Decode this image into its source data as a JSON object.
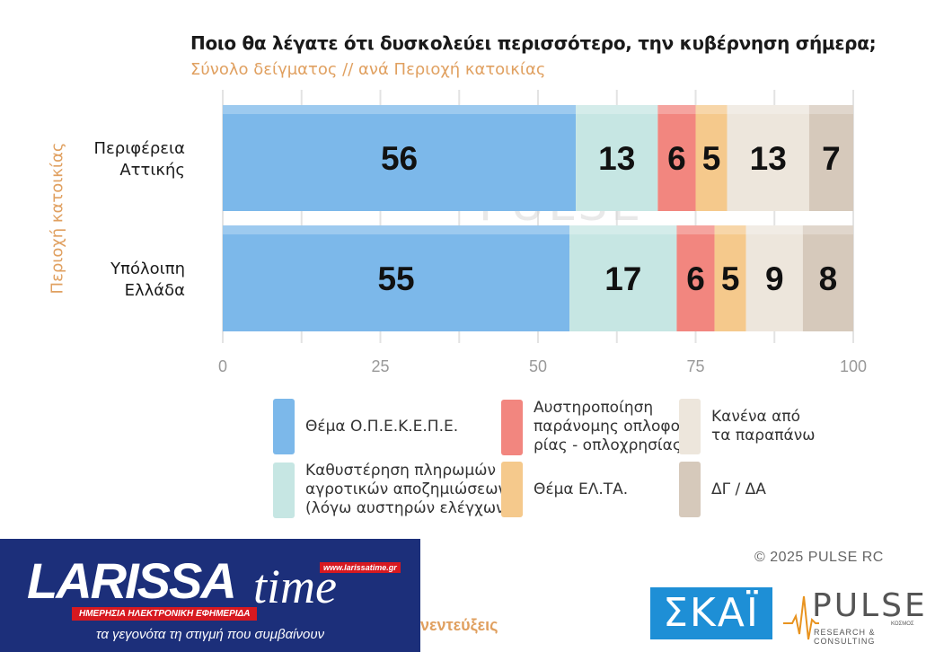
{
  "chart_data": {
    "type": "bar",
    "orientation": "horizontal",
    "stacked": true,
    "title": "Ποιο θα λέγατε ότι δυσκολεύει περισσότερο, την κυβέρνηση σήμερα;",
    "subtitle": "Σύνολο δείγματος // ανά Περιοχή κατοικίας",
    "ylabel": "Περιοχή κατοικίας",
    "xlim": [
      0,
      100
    ],
    "xticks": [
      "0",
      "25",
      "50",
      "75",
      "100"
    ],
    "categories": [
      {
        "line1": "Περιφέρεια",
        "line2": "Αττικής"
      },
      {
        "line1": "Υπόλοιπη",
        "line2": "Ελλάδα"
      }
    ],
    "series": [
      {
        "name": "Θέμα Ο.Π.Ε.Κ.Ε.Π.Ε.",
        "color": "#7cb8ea",
        "values": [
          56,
          55
        ]
      },
      {
        "name": "Καθυστέρηση πληρωμών αγροτικών αποζημιώσεων (λόγω αυστηρών ελέγχων)",
        "color": "#c6e6e3",
        "values": [
          13,
          17
        ]
      },
      {
        "name": "Αυστηροποίηση παράνομης οπλοφορίας - οπλοχρησίας",
        "color": "#f2867f",
        "values": [
          6,
          6
        ]
      },
      {
        "name": "Θέμα ΕΛ.ΤΑ.",
        "color": "#f5c98c",
        "values": [
          5,
          5
        ]
      },
      {
        "name": "Κανένα από τα παραπάνω",
        "color": "#ede6dc",
        "values": [
          13,
          9
        ]
      },
      {
        "name": "ΔΓ / ΔΑ",
        "color": "#d6c9bb",
        "values": [
          7,
          8
        ]
      }
    ],
    "grid": true
  },
  "legend": [
    {
      "lines": [
        "Θέμα Ο.Π.Ε.Κ.Ε.Π.Ε."
      ],
      "color": "#7cb8ea"
    },
    {
      "lines": [
        "Καθυστέρηση πληρωμών",
        "αγροτικών αποζημιώσεων",
        "(λόγω αυστηρών ελέγχων)"
      ],
      "color": "#c6e6e3"
    },
    {
      "lines": [
        "Αυστηροποίηση",
        "παράνομης οπλοφο-",
        "ρίας - οπλοχρησίας"
      ],
      "color": "#f2867f"
    },
    {
      "lines": [
        "Θέμα ΕΛ.ΤΑ."
      ],
      "color": "#f5c98c"
    },
    {
      "lines": [
        "Κανένα από",
        "τα παραπάνω"
      ],
      "color": "#ede6dc"
    },
    {
      "lines": [
        "ΔΓ / ΔΑ"
      ],
      "color": "#d6c9bb"
    }
  ],
  "copyright": "©  2025  PULSE RC",
  "watermark": {
    "main": "PULSE",
    "sub": "RESEARCH & CONSULTING"
  },
  "larissa": {
    "logo_main": "LARISSA",
    "logo_time": "time",
    "url": "www.larissatime.gr",
    "strap": "ΗΜΕΡΗΣΙΑ ΗΛΕΚΤΡΟΝΙΚΗ ΕΦΗΜΕΡΙΔΑ",
    "tagline": "τα γεγονότα τη στιγμή που συμβαίνουν"
  },
  "interviews_text": "νεντεύξεις",
  "skai_logo": "ΣΚΑΪ",
  "pulse_logo": {
    "main": "PULSE",
    "sub": "RESEARCH & CONSULTING",
    "kosmos": "ΚΟΣΜΟΣ"
  }
}
